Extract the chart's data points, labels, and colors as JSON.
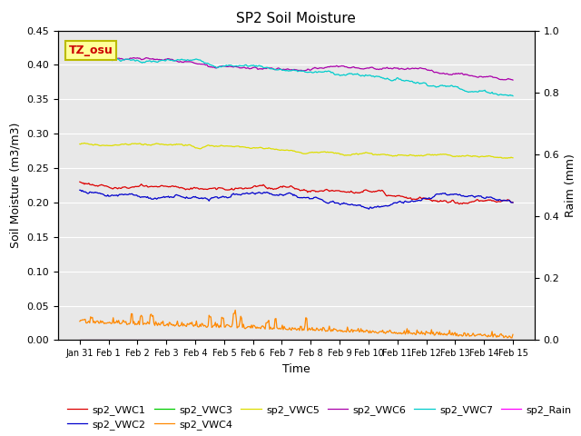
{
  "title": "SP2 Soil Moisture",
  "xlabel": "Time",
  "ylabel_left": "Soil Moisture (m3/m3)",
  "ylabel_right": "Raim (mm)",
  "ylim_left": [
    0.0,
    0.45
  ],
  "ylim_right": [
    0.0,
    1.0
  ],
  "background_color": "#e8e8e8",
  "annotation_text": "TZ_osu",
  "annotation_bg": "#ffff99",
  "annotation_border": "#bbbb00",
  "series_colors": {
    "sp2_VWC1": "#dd0000",
    "sp2_VWC2": "#0000cc",
    "sp2_VWC3": "#00cc00",
    "sp2_VWC4": "#ff8800",
    "sp2_VWC5": "#dddd00",
    "sp2_VWC6": "#aa00aa",
    "sp2_VWC7": "#00cccc",
    "sp2_Rain": "#ff00ff"
  },
  "x_tick_labels": [
    "Jan 31",
    "Feb 1",
    "Feb 2",
    "Feb 3",
    "Feb 4",
    "Feb 5",
    "Feb 6",
    "Feb 7",
    "Feb 8",
    "Feb 9",
    "Feb 10",
    "Feb 11",
    "Feb 12",
    "Feb 13",
    "Feb 14",
    "Feb 15"
  ],
  "num_points": 480,
  "yticks_left": [
    0.0,
    0.05,
    0.1,
    0.15,
    0.2,
    0.25,
    0.3,
    0.35,
    0.4,
    0.45
  ],
  "yticks_right": [
    0.0,
    0.2,
    0.4,
    0.6,
    0.8,
    1.0
  ]
}
